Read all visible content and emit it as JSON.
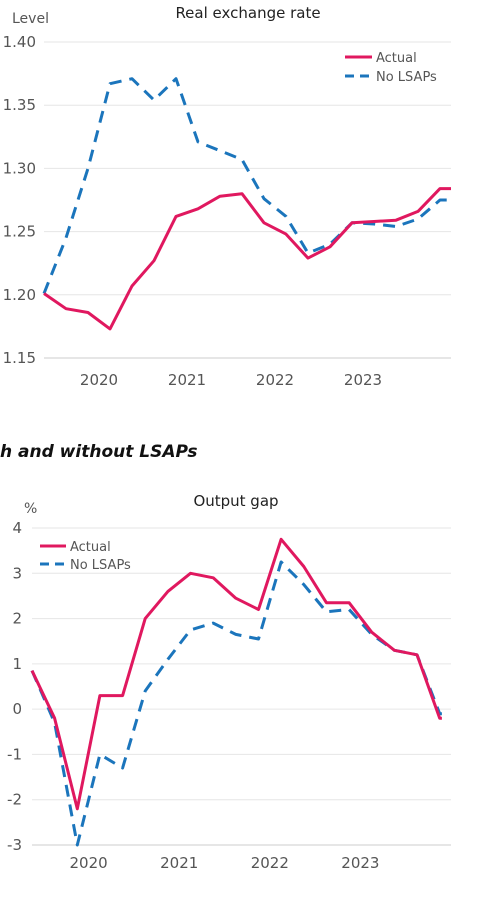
{
  "section_heading": "h and without LSAPs",
  "colors": {
    "actual": "#e0185f",
    "no_lsaps": "#1b75bc"
  },
  "chart_data": [
    {
      "type": "line",
      "title": "Real exchange rate",
      "ylabel": "Level",
      "ylim": [
        1.15,
        1.4
      ],
      "yticks": [
        "1.15",
        "1.20",
        "1.25",
        "1.30",
        "1.35",
        "1.40"
      ],
      "xticks": [
        "2020",
        "2021",
        "2022",
        "2023"
      ],
      "xlim": [
        2019.375,
        2024.0
      ],
      "legend": "top-right",
      "grid": true,
      "x": [
        2019.375,
        2019.625,
        2019.875,
        2020.125,
        2020.375,
        2020.625,
        2020.875,
        2021.125,
        2021.375,
        2021.625,
        2021.875,
        2022.125,
        2022.375,
        2022.625,
        2022.875,
        2023.125,
        2023.375,
        2023.625,
        2023.875,
        2024.0
      ],
      "series": [
        {
          "name": "Actual",
          "values": [
            1.201,
            1.189,
            1.186,
            1.173,
            1.207,
            1.227,
            1.262,
            1.268,
            1.278,
            1.28,
            1.257,
            1.248,
            1.229,
            1.238,
            1.257,
            1.258,
            1.259,
            1.266,
            1.284,
            1.284
          ]
        },
        {
          "name": "No LSAPs",
          "values": [
            1.201,
            1.245,
            1.3,
            1.367,
            1.371,
            1.354,
            1.371,
            1.321,
            1.314,
            1.307,
            1.276,
            1.262,
            1.233,
            1.24,
            1.257,
            1.256,
            1.254,
            1.26,
            1.275,
            1.275
          ]
        }
      ]
    },
    {
      "type": "line",
      "title": "Output gap",
      "ylabel": "%",
      "ylim": [
        -3,
        4
      ],
      "yticks": [
        "-3",
        "-2",
        "-1",
        "0",
        "1",
        "2",
        "3",
        "4"
      ],
      "xticks": [
        "2020",
        "2021",
        "2022",
        "2023"
      ],
      "xlim": [
        2019.375,
        2024.0
      ],
      "legend": "top-left",
      "grid": true,
      "x": [
        2019.375,
        2019.625,
        2019.875,
        2020.125,
        2020.375,
        2020.625,
        2020.875,
        2021.125,
        2021.375,
        2021.625,
        2021.875,
        2022.125,
        2022.375,
        2022.625,
        2022.875,
        2023.125,
        2023.375,
        2023.625,
        2023.875,
        2023.9
      ],
      "series": [
        {
          "name": "Actual",
          "values": [
            0.85,
            -0.2,
            -2.2,
            0.3,
            0.3,
            2.0,
            2.6,
            3.0,
            2.9,
            2.45,
            2.2,
            3.75,
            3.15,
            2.35,
            2.35,
            1.7,
            1.3,
            1.2,
            -0.2,
            -0.2
          ]
        },
        {
          "name": "No LSAPs",
          "values": [
            0.85,
            -0.3,
            -3.0,
            -1.0,
            -1.3,
            0.4,
            1.1,
            1.75,
            1.9,
            1.65,
            1.55,
            3.25,
            2.75,
            2.15,
            2.2,
            1.65,
            1.3,
            1.2,
            -0.1,
            -0.1
          ]
        }
      ]
    }
  ]
}
